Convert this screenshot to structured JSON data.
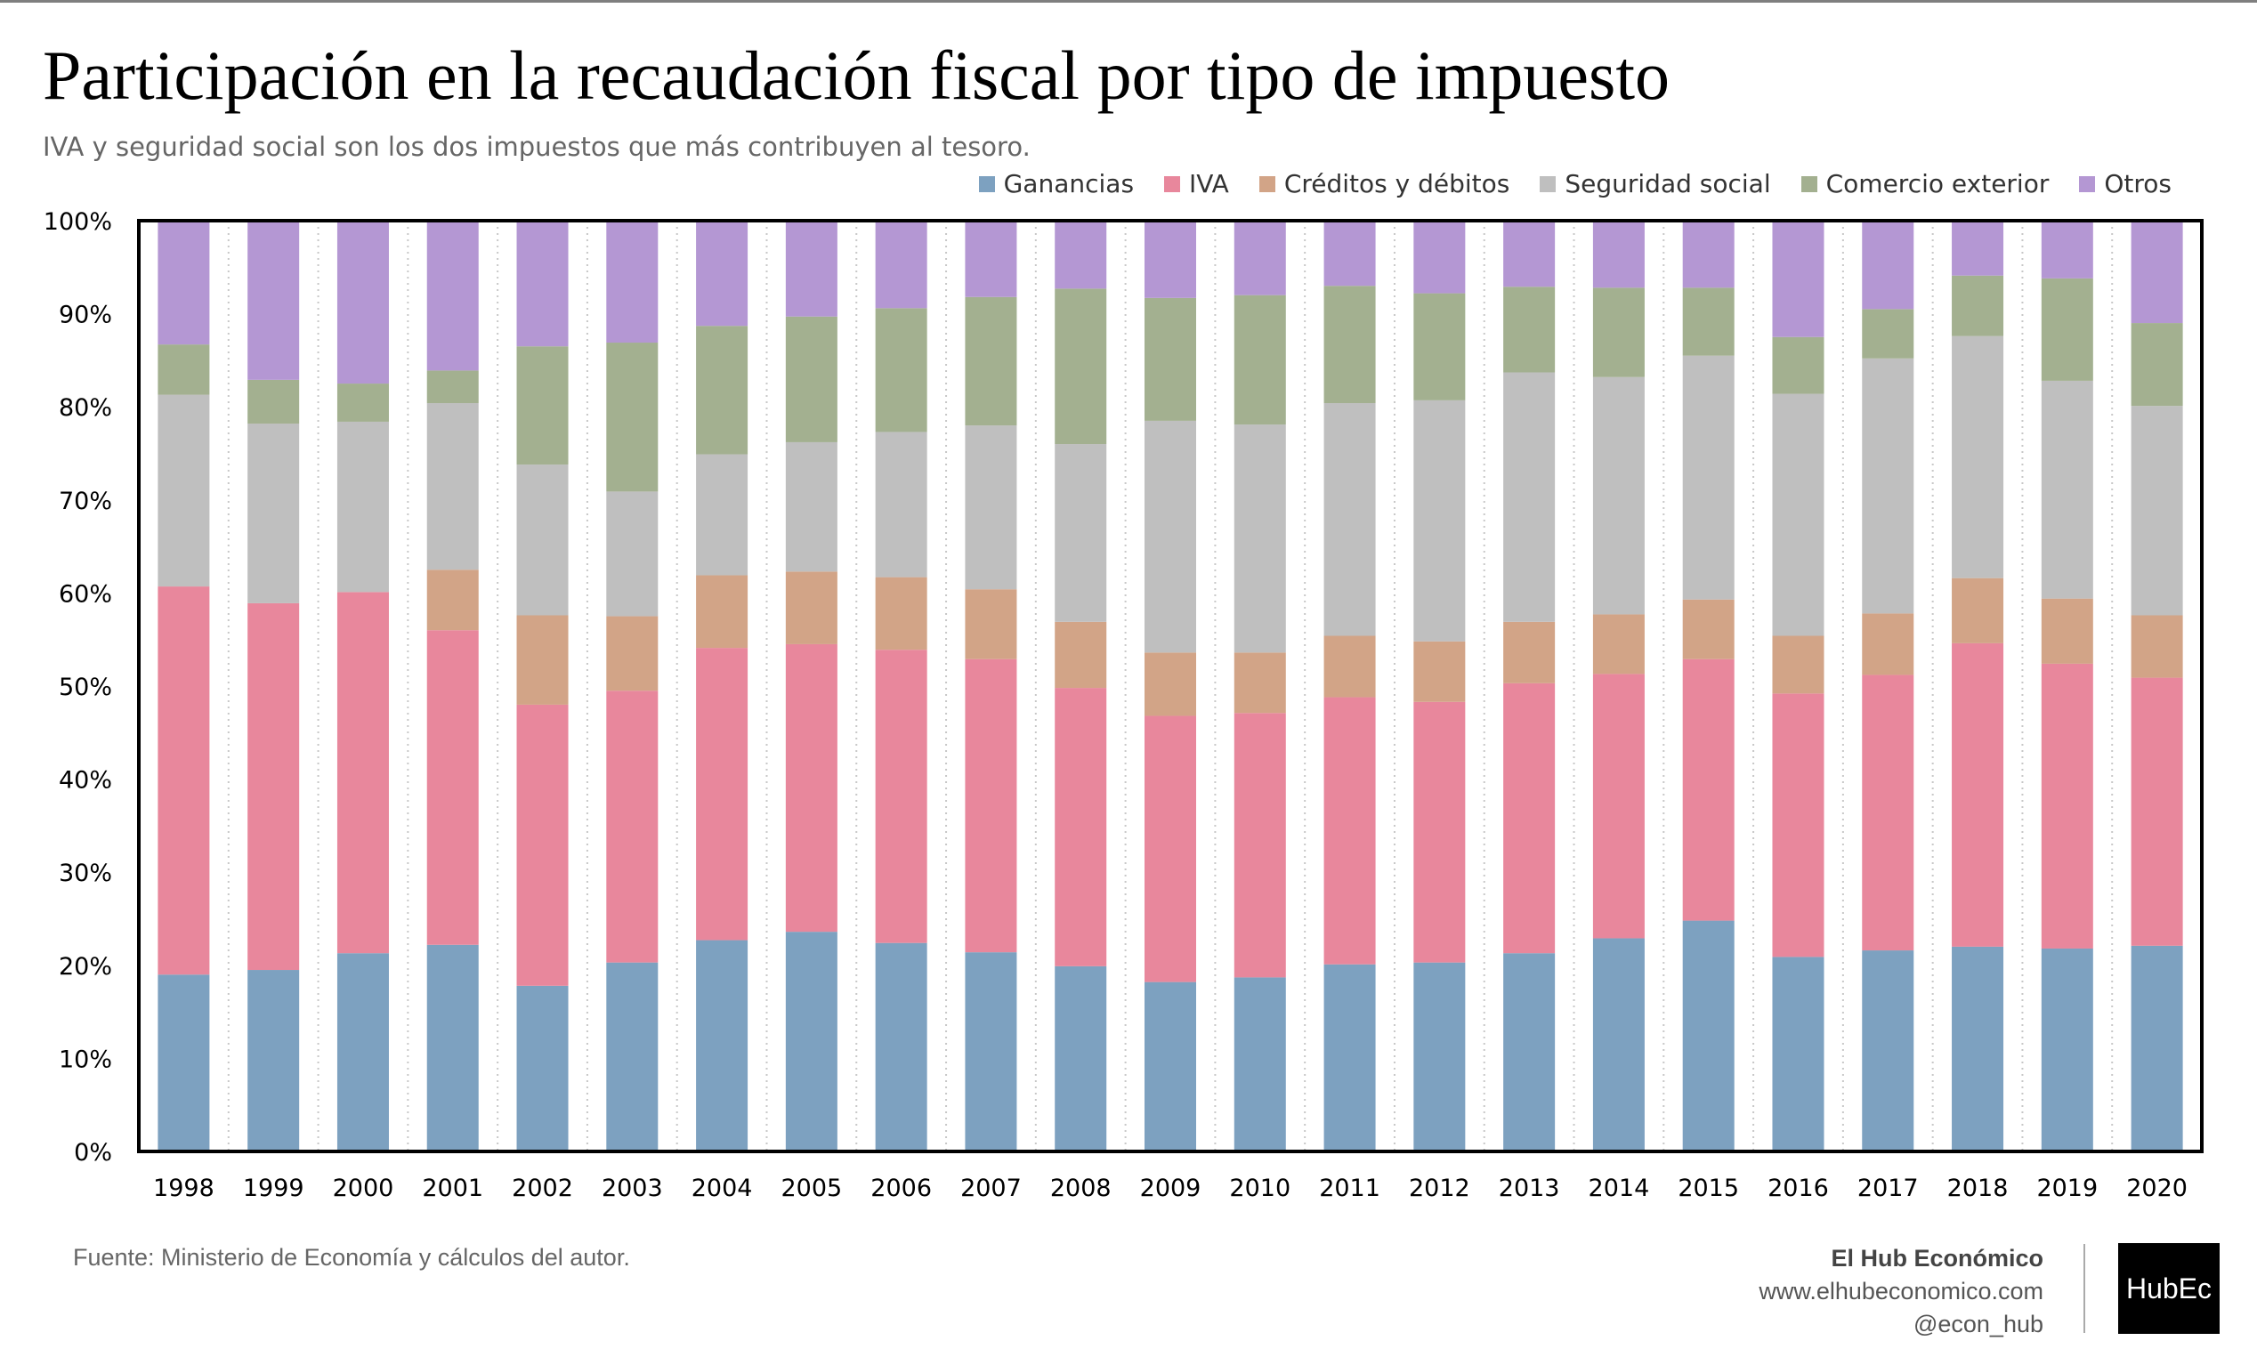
{
  "title": "Participación en la recaudación fiscal por tipo de impuesto",
  "subtitle": "IVA y seguridad social son los dos impuestos que más contribuyen al tesoro.",
  "source": "Fuente: Ministerio de Economía y cálculos del autor.",
  "brand": {
    "name": "El Hub Económico",
    "url": "www.elhubeconomico.com",
    "handle": "@econ_hub",
    "logo_text": "HubEc"
  },
  "chart_data": {
    "type": "bar",
    "stacked": true,
    "normalized": true,
    "title": "",
    "xlabel": "",
    "ylabel": "",
    "ylim": [
      0,
      100
    ],
    "y_ticks": [
      "0%",
      "10%",
      "20%",
      "30%",
      "40%",
      "50%",
      "60%",
      "70%",
      "80%",
      "90%",
      "100%"
    ],
    "grid": "vertical dotted",
    "legend_position": "top-right",
    "categories": [
      "1998",
      "1999",
      "2000",
      "2001",
      "2002",
      "2003",
      "2004",
      "2005",
      "2006",
      "2007",
      "2008",
      "2009",
      "2010",
      "2011",
      "2012",
      "2013",
      "2014",
      "2015",
      "2016",
      "2017",
      "2018",
      "2019",
      "2020"
    ],
    "series": [
      {
        "name": "Ganancias",
        "color": "#7da1c0",
        "values": [
          19.0,
          19.5,
          21.3,
          22.2,
          17.8,
          20.3,
          22.7,
          23.6,
          22.4,
          21.4,
          19.9,
          18.2,
          18.7,
          20.1,
          20.3,
          21.3,
          22.9,
          24.8,
          20.9,
          21.6,
          22.0,
          21.8,
          22.1
        ]
      },
      {
        "name": "IVA",
        "color": "#e8879c",
        "values": [
          41.7,
          39.4,
          38.8,
          33.8,
          30.2,
          29.2,
          31.4,
          30.9,
          31.5,
          31.5,
          29.9,
          28.6,
          28.4,
          28.7,
          28.0,
          29.0,
          28.4,
          28.1,
          28.3,
          29.6,
          32.6,
          30.6,
          28.8
        ]
      },
      {
        "name": "Créditos y débitos",
        "color": "#d2a487",
        "values": [
          0,
          0,
          0,
          6.5,
          9.6,
          8.0,
          7.8,
          7.8,
          7.8,
          7.5,
          7.1,
          6.8,
          6.5,
          6.6,
          6.5,
          6.6,
          6.4,
          6.4,
          6.2,
          6.6,
          7.0,
          7.0,
          6.7
        ]
      },
      {
        "name": "Seguridad social",
        "color": "#bfbfbf",
        "values": [
          20.6,
          19.3,
          18.3,
          17.9,
          16.2,
          13.4,
          13.0,
          13.9,
          15.6,
          17.6,
          19.1,
          24.9,
          24.5,
          25.0,
          25.9,
          26.8,
          25.5,
          26.2,
          26.0,
          27.4,
          26.0,
          23.4,
          22.5
        ]
      },
      {
        "name": "Comercio exterior",
        "color": "#a3b090",
        "values": [
          5.4,
          4.7,
          4.1,
          3.5,
          12.7,
          16.0,
          13.8,
          13.5,
          13.3,
          13.8,
          16.7,
          13.2,
          13.9,
          12.6,
          11.5,
          9.2,
          9.6,
          7.3,
          6.1,
          5.3,
          6.5,
          11.0,
          8.9
        ]
      },
      {
        "name": "Otros",
        "color": "#b497d3",
        "values": [
          13.3,
          17.1,
          17.5,
          16.1,
          13.5,
          13.1,
          11.3,
          10.3,
          9.4,
          8.2,
          7.3,
          8.3,
          8.0,
          7.0,
          7.8,
          7.1,
          7.2,
          7.2,
          12.5,
          9.5,
          5.9,
          6.2,
          11.0
        ]
      }
    ]
  }
}
